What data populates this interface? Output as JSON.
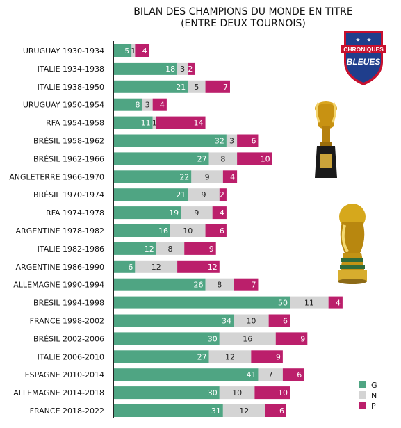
{
  "title": {
    "line1": "BILAN DES CHAMPIONS DU MONDE EN TITRE",
    "line2": "(ENTRE DEUX TOURNOIS)"
  },
  "logo": {
    "line1": "CHRONIQUES",
    "line2": "BLEUES"
  },
  "colors": {
    "G": "#4fa583",
    "N": "#d4d4d4",
    "P": "#bb1f6b"
  },
  "chart_data": {
    "type": "bar",
    "orientation": "horizontal",
    "stacked": true,
    "categories": [
      "URUGUAY 1930-1934",
      "ITALIE 1934-1938",
      "ITALIE 1938-1950",
      "URUGUAY 1950-1954",
      "RFA 1954-1958",
      "BRÉSIL 1958-1962",
      "BRÉSIL 1962-1966",
      "ANGLETERRE 1966-1970",
      "BRÉSIL 1970-1974",
      "RFA 1974-1978",
      "ARGENTINE 1978-1982",
      "ITALIE 1982-1986",
      "ARGENTINE 1986-1990",
      "ALLEMAGNE 1990-1994",
      "BRÉSIL 1994-1998",
      "FRANCE 1998-2002",
      "BRÉSIL 2002-2006",
      "ITALIE 2006-2010",
      "ESPAGNE 2010-2014",
      "ALLEMAGNE 2014-2018",
      "FRANCE 2018-2022"
    ],
    "series": [
      {
        "name": "G",
        "values": [
          5,
          18,
          21,
          8,
          11,
          32,
          27,
          22,
          21,
          19,
          16,
          12,
          6,
          26,
          50,
          34,
          30,
          27,
          41,
          30,
          31
        ]
      },
      {
        "name": "N",
        "values": [
          1,
          3,
          5,
          3,
          1,
          3,
          8,
          9,
          9,
          9,
          10,
          8,
          12,
          8,
          11,
          10,
          16,
          12,
          7,
          10,
          12
        ]
      },
      {
        "name": "P",
        "values": [
          4,
          2,
          7,
          4,
          14,
          6,
          10,
          4,
          2,
          4,
          6,
          9,
          12,
          7,
          4,
          6,
          9,
          9,
          6,
          10,
          6
        ]
      }
    ],
    "legend": {
      "position": "bottom-right",
      "entries": [
        "G",
        "N",
        "P"
      ]
    }
  }
}
